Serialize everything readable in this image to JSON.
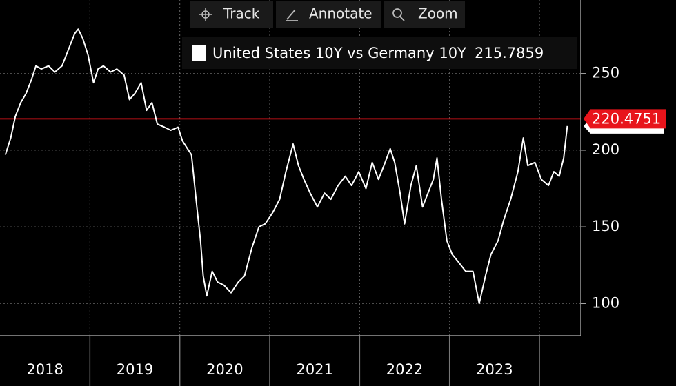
{
  "toolbar": [
    "Track",
    "Annotate",
    "Zoom"
  ],
  "chart_data": {
    "type": "line",
    "xlim": [
      2018.0,
      2024.46
    ],
    "ylim": [
      79,
      298
    ],
    "yticks": [
      100,
      150,
      200,
      250
    ],
    "xticks": [
      {
        "value": 2018.5,
        "label": "2018"
      },
      {
        "value": 2019.5,
        "label": "2019"
      },
      {
        "value": 2020.5,
        "label": "2020"
      },
      {
        "value": 2021.5,
        "label": "2021"
      },
      {
        "value": 2022.5,
        "label": "2022"
      },
      {
        "value": 2023.5,
        "label": "2023"
      }
    ],
    "grid": true,
    "reference_line": {
      "value": 220.4751,
      "color": "#e8141b"
    },
    "series": [
      {
        "name": "United States 10Y vs Germany 10Y",
        "color": "#ffffff",
        "x": [
          2018.06,
          2018.12,
          2018.17,
          2018.23,
          2018.29,
          2018.35,
          2018.4,
          2018.46,
          2018.54,
          2018.61,
          2018.69,
          2018.77,
          2018.83,
          2018.87,
          2018.92,
          2018.98,
          2019.04,
          2019.09,
          2019.15,
          2019.23,
          2019.3,
          2019.38,
          2019.44,
          2019.5,
          2019.57,
          2019.63,
          2019.69,
          2019.75,
          2019.83,
          2019.9,
          2019.98,
          2020.03,
          2020.13,
          2020.19,
          2020.23,
          2020.26,
          2020.3,
          2020.36,
          2020.42,
          2020.49,
          2020.57,
          2020.65,
          2020.72,
          2020.8,
          2020.88,
          2020.95,
          2021.03,
          2021.11,
          2021.18,
          2021.26,
          2021.32,
          2021.38,
          2021.45,
          2021.53,
          2021.61,
          2021.68,
          2021.76,
          2021.84,
          2021.91,
          2021.99,
          2022.07,
          2022.14,
          2022.21,
          2022.27,
          2022.34,
          2022.39,
          2022.45,
          2022.5,
          2022.57,
          2022.63,
          2022.7,
          2022.76,
          2022.82,
          2022.86,
          2022.91,
          2022.97,
          2023.03,
          2023.1,
          2023.18,
          2023.26,
          2023.33,
          2023.4,
          2023.46,
          2023.54,
          2023.6,
          2023.68,
          2023.76,
          2023.82,
          2023.87,
          2023.95,
          2024.02,
          2024.1,
          2024.16,
          2024.22,
          2024.27,
          2024.31
        ],
        "values": [
          197,
          208,
          222,
          231,
          237,
          246,
          255,
          253,
          255,
          251,
          255,
          267,
          276,
          279,
          273,
          262,
          244,
          253,
          255,
          251,
          253,
          249,
          233,
          237,
          244,
          226,
          231,
          217,
          215,
          213,
          215,
          206,
          197,
          163,
          141,
          118,
          105,
          121,
          114,
          112,
          107,
          114,
          118,
          136,
          150,
          152,
          159,
          168,
          186,
          204,
          190,
          181,
          172,
          163,
          172,
          168,
          177,
          183,
          177,
          186,
          175,
          192,
          181,
          190,
          201,
          192,
          172,
          152,
          177,
          190,
          163,
          172,
          181,
          195,
          168,
          141,
          132,
          127,
          121,
          121,
          100,
          118,
          132,
          141,
          154,
          168,
          186,
          208,
          190,
          192,
          181,
          177,
          186,
          183,
          195,
          215.7859
        ]
      }
    ]
  }
}
